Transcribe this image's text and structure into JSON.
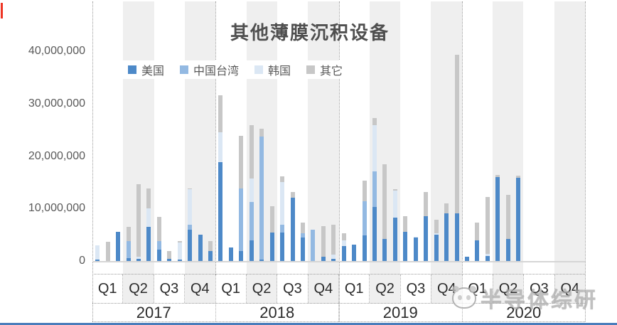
{
  "page": {
    "red_marker_color": "#ee3424",
    "bottom_line_color": "#4a7dbb",
    "band_color": "#efefef"
  },
  "watermark": {
    "text": "半导体综研"
  },
  "chart_data": {
    "type": "bar",
    "variant": "stacked-vertical-monthly",
    "title": "其他薄膜沉积设备",
    "legend_position": "top-left",
    "grid": "alternating-quarter-bands",
    "ylim": [
      0,
      43000000
    ],
    "yticks": [
      {
        "value": 40000000,
        "label": "40,000,000"
      },
      {
        "value": 30000000,
        "label": "30,000,000"
      },
      {
        "value": 20000000,
        "label": "20,000,000"
      },
      {
        "value": 10000000,
        "label": "10,000,000"
      },
      {
        "value": 0,
        "label": "0"
      }
    ],
    "series": [
      {
        "name": "美国",
        "color": "#4d89c8"
      },
      {
        "name": "中国台湾",
        "color": "#93b9e2"
      },
      {
        "name": "韩国",
        "color": "#dbe7f4"
      },
      {
        "name": "其它",
        "color": "#c7c7c7"
      }
    ],
    "stack_order": [
      "美国",
      "中国台湾",
      "韩国",
      "其它"
    ],
    "years": [
      {
        "label": "2017",
        "quarters": [
          {
            "label": "Q1",
            "months": [
              [
                400000,
                0,
                2700000,
                0
              ],
              [
                200000,
                0,
                0,
                3600000
              ],
              [
                5700000,
                0,
                0,
                0
              ]
            ]
          },
          {
            "label": "Q2",
            "months": [
              [
                700000,
                3200000,
                0,
                2700000
              ],
              [
                500000,
                0,
                500000,
                13800000
              ],
              [
                6700000,
                0,
                3500000,
                3700000
              ]
            ]
          },
          {
            "label": "Q3",
            "months": [
              [
                2300000,
                1600000,
                0,
                4600000
              ],
              [
                500000,
                0,
                0,
                1600000
              ],
              [
                400000,
                0,
                3300000,
                200000
              ]
            ]
          },
          {
            "label": "Q4",
            "months": [
              [
                6100000,
                900000,
                6800000,
                200000
              ],
              [
                5100000,
                0,
                0,
                0
              ],
              [
                2100000,
                0,
                0,
                1900000
              ]
            ]
          }
        ]
      },
      {
        "label": "2018",
        "quarters": [
          {
            "label": "Q1",
            "months": [
              [
                19000000,
                0,
                5700000,
                7000000
              ],
              [
                2750000,
                0,
                0,
                0
              ],
              [
                2100000,
                11900000,
                0,
                9950000
              ]
            ]
          },
          {
            "label": "Q2",
            "months": [
              [
                4100000,
                7250000,
                4500000,
                10200000
              ],
              [
                400000,
                23400000,
                0,
                1500000
              ],
              [
                5500000,
                0,
                0,
                5100000
              ]
            ]
          },
          {
            "label": "Q3",
            "months": [
              [
                5500000,
                1600000,
                8100000,
                1100000
              ],
              [
                12250000,
                0,
                0,
                1000000
              ],
              [
                4550000,
                900000,
                0,
                2000000
              ]
            ]
          },
          {
            "label": "Q4",
            "months": [
              [
                100000,
                5900000,
                0,
                0
              ],
              [
                950000,
                0,
                0,
                5800000
              ],
              [
                500000,
                0,
                900000,
                5650000
              ]
            ]
          }
        ]
      },
      {
        "label": "2019",
        "quarters": [
          {
            "label": "Q1",
            "months": [
              [
                3000000,
                0,
                1100000,
                1350000
              ],
              [
                3200000,
                0,
                0,
                0
              ],
              [
                5000000,
                6550000,
                0,
                3950000
              ]
            ]
          },
          {
            "label": "Q2",
            "months": [
              [
                10450000,
                6800000,
                8800000,
                1350000
              ],
              [
                4350000,
                0,
                0,
                14250000
              ],
              [
                8400000,
                0,
                5200000,
                250000
              ]
            ]
          },
          {
            "label": "Q3",
            "months": [
              [
                5700000,
                0,
                0,
                3000000
              ],
              [
                4600000,
                0,
                200000,
                0
              ],
              [
                8700000,
                0,
                0,
                4650000
              ]
            ]
          },
          {
            "label": "Q4",
            "months": [
              [
                5100000,
                0,
                350000,
                2500000
              ],
              [
                9200000,
                0,
                0,
                1950000
              ],
              [
                9200000,
                0,
                0,
                30200000
              ]
            ]
          }
        ]
      },
      {
        "label": "2020",
        "quarters": [
          {
            "label": "Q1",
            "months": [
              [
                950000,
                0,
                0,
                0
              ],
              [
                4100000,
                0,
                0,
                3400000
              ],
              [
                1050000,
                0,
                450000,
                10850000
              ]
            ]
          },
          {
            "label": "Q2",
            "months": [
              [
                16100000,
                0,
                0,
                450000
              ],
              [
                4350000,
                0,
                0,
                8350000
              ],
              [
                16000000,
                0,
                0,
                350000
              ]
            ]
          },
          {
            "label": "Q3",
            "months": [
              [
                0,
                0,
                0,
                0
              ],
              [
                0,
                0,
                0,
                0
              ],
              [
                0,
                0,
                0,
                0
              ]
            ]
          },
          {
            "label": "Q4",
            "months": [
              [
                0,
                0,
                0,
                0
              ],
              [
                0,
                0,
                0,
                0
              ],
              [
                0,
                0,
                0,
                0
              ]
            ]
          }
        ]
      }
    ]
  }
}
